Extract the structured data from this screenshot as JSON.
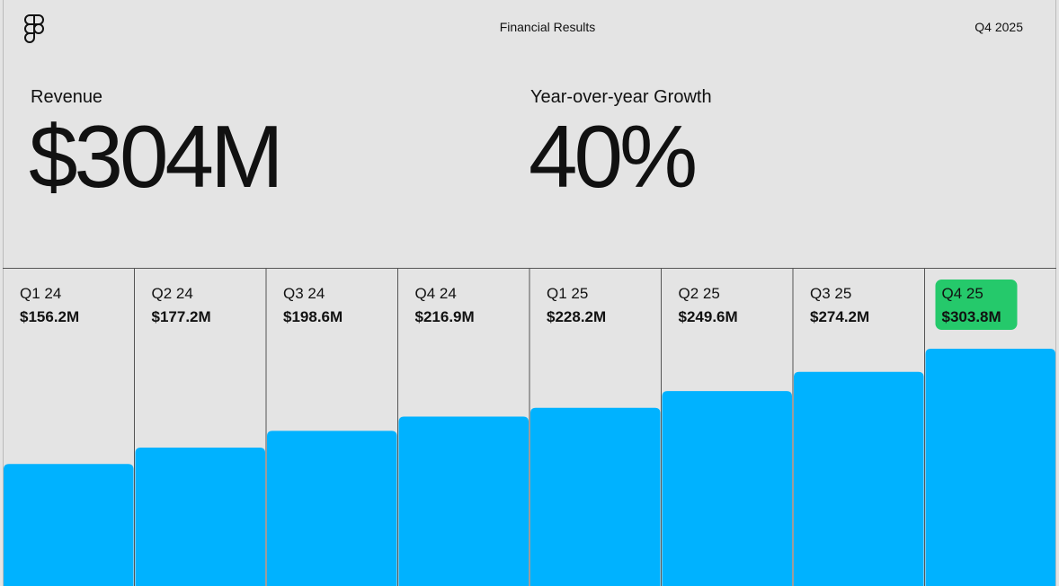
{
  "header": {
    "title": "Financial Results",
    "period": "Q4 2025"
  },
  "kpis": [
    {
      "label": "Revenue",
      "value": "$304M"
    },
    {
      "label": "Year-over-year Growth",
      "value": "40%"
    }
  ],
  "chart_data": {
    "type": "bar",
    "categories": [
      "Q1 24",
      "Q2 24",
      "Q3 24",
      "Q4 24",
      "Q1 25",
      "Q2 25",
      "Q3 25",
      "Q4 25"
    ],
    "values": [
      156.2,
      177.2,
      198.6,
      216.9,
      228.2,
      249.6,
      274.2,
      303.8
    ],
    "value_labels": [
      "$156.2M",
      "$177.2M",
      "$198.6M",
      "$216.9M",
      "$228.2M",
      "$249.6M",
      "$274.2M",
      "$303.8M"
    ],
    "color": "#00b2ff",
    "highlight_color": "#25c96b"
  }
}
